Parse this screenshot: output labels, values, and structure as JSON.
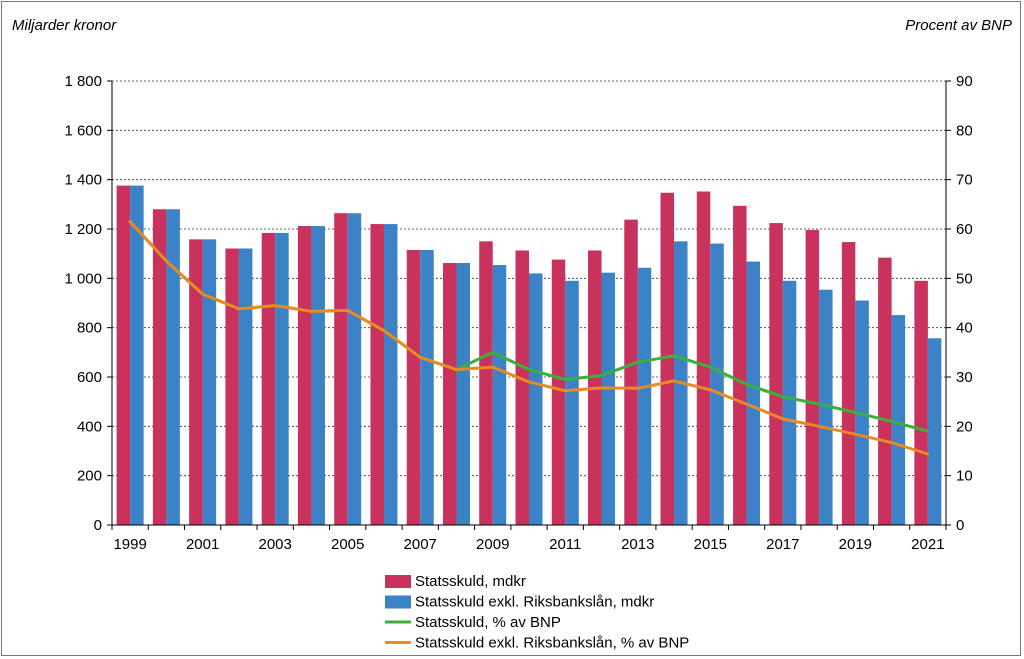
{
  "chart_data": {
    "type": "bar",
    "left_axis_label": "Miljarder kronor",
    "right_axis_label": "Procent av BNP",
    "ylim_left": [
      0,
      1800
    ],
    "ylim_right": [
      0,
      90
    ],
    "left_ticks": [
      "0",
      "200",
      "400",
      "600",
      "800",
      "1 000",
      "1 200",
      "1 400",
      "1 600",
      "1 800"
    ],
    "right_ticks": [
      "0",
      "10",
      "20",
      "30",
      "40",
      "50",
      "60",
      "70",
      "80",
      "90"
    ],
    "categories": [
      "1999",
      "2000",
      "2001",
      "2002",
      "2003",
      "2004",
      "2005",
      "2006",
      "2007",
      "2008",
      "2009",
      "2010",
      "2011",
      "2012",
      "2013",
      "2014",
      "2015",
      "2016",
      "2017",
      "2018",
      "2019",
      "2020",
      "2021"
    ],
    "x_tick_labels": [
      "1999",
      "2001",
      "2003",
      "2005",
      "2007",
      "2009",
      "2011",
      "2013",
      "2015",
      "2017",
      "2019",
      "2021"
    ],
    "series": [
      {
        "name": "Statsskuld, mdkr",
        "kind": "bar",
        "axis": "left",
        "color": "#c8325c",
        "values": [
          1376,
          1280,
          1158,
          1121,
          1184,
          1212,
          1264,
          1220,
          1115,
          1062,
          1150,
          1113,
          1076,
          1113,
          1238,
          1347,
          1352,
          1294,
          1224,
          1196,
          1147,
          1084,
          990
        ]
      },
      {
        "name": "Statsskuld exkl. Riksbankslån, mdkr",
        "kind": "bar",
        "axis": "left",
        "color": "#3b82c6",
        "values": [
          1376,
          1280,
          1158,
          1121,
          1184,
          1212,
          1264,
          1220,
          1115,
          1062,
          1054,
          1020,
          990,
          1023,
          1043,
          1150,
          1141,
          1068,
          990,
          954,
          910,
          851,
          757
        ]
      },
      {
        "name": "Statsskuld, % av BNP",
        "kind": "line",
        "axis": "right",
        "color": "#3daf3d",
        "values": [
          61.5,
          53.5,
          46.8,
          43.8,
          44.5,
          43.3,
          43.5,
          39.4,
          34.0,
          31.5,
          35.0,
          31.5,
          29.5,
          30.3,
          33.0,
          34.3,
          32.0,
          28.5,
          26.0,
          24.5,
          22.8,
          21.0,
          19.0
        ]
      },
      {
        "name": "Statsskuld exkl. Riksbankslån, % av BNP",
        "kind": "line",
        "axis": "right",
        "color": "#ea8a24",
        "values": [
          61.5,
          53.5,
          46.8,
          43.8,
          44.5,
          43.3,
          43.5,
          39.4,
          34.0,
          31.5,
          32.0,
          29.0,
          27.2,
          27.8,
          27.7,
          29.2,
          27.4,
          24.5,
          21.5,
          20.0,
          18.4,
          16.7,
          14.4
        ]
      }
    ],
    "legend_position": "bottom-center",
    "grid": true
  }
}
